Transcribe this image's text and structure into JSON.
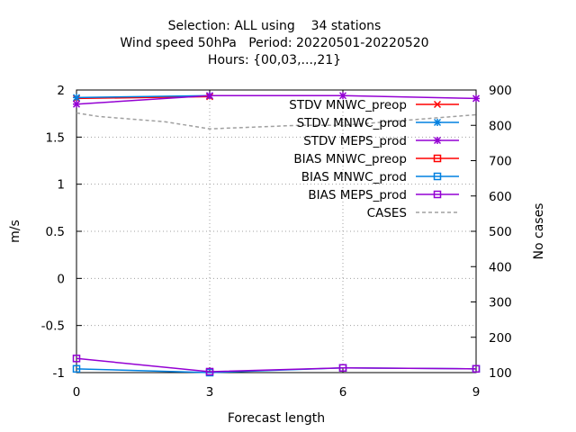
{
  "chart_data": {
    "type": "line",
    "title_lines": [
      "Selection: ALL using    34 stations",
      "Wind speed 50hPa   Period: 20220501-20220520",
      "Hours: {00,03,...,21}"
    ],
    "xlabel": "Forecast length",
    "ylabel": "m/s",
    "y2label": "No cases",
    "x": [
      0,
      3,
      6,
      9
    ],
    "xlim": [
      0,
      9
    ],
    "ylim": [
      -1,
      2
    ],
    "y2lim": [
      100,
      900
    ],
    "xticks": [
      "0",
      "3",
      "6",
      "9"
    ],
    "yticks": [
      "-1",
      "-0.5",
      "0",
      "0.5",
      "1",
      "1.5",
      "2"
    ],
    "y2ticks": [
      "100",
      "200",
      "300",
      "400",
      "500",
      "600",
      "700",
      "800",
      "900"
    ],
    "grid": true,
    "legend_position": "top-right",
    "series": [
      {
        "name": "STDV MNWC_preop",
        "axis": "y1",
        "color": "#ff0000",
        "marker": "cross",
        "values": [
          1.91,
          1.93,
          null,
          null
        ]
      },
      {
        "name": "STDV MNWC_prod",
        "axis": "y1",
        "color": "#0080e0",
        "marker": "star",
        "values": [
          1.92,
          1.94,
          null,
          null
        ]
      },
      {
        "name": "STDV MEPS_prod",
        "axis": "y1",
        "color": "#9400d3",
        "marker": "star",
        "values": [
          1.85,
          1.94,
          1.94,
          1.91
        ]
      },
      {
        "name": "BIAS MNWC_preop",
        "axis": "y1",
        "color": "#ff0000",
        "marker": "square",
        "values": [
          null,
          null,
          null,
          null
        ]
      },
      {
        "name": "BIAS MNWC_prod",
        "axis": "y1",
        "color": "#0080e0",
        "marker": "square",
        "values": [
          -0.96,
          -1.0,
          -0.95,
          -0.96
        ]
      },
      {
        "name": "BIAS MEPS_prod",
        "axis": "y1",
        "color": "#9400d3",
        "marker": "square",
        "values": [
          -0.85,
          -0.99,
          -0.95,
          -0.96
        ]
      },
      {
        "name": "CASES",
        "axis": "y2",
        "color": "#a0a0a0",
        "marker": "none",
        "dashed": true,
        "x": [
          0,
          0.5,
          1,
          2,
          3,
          4,
          5,
          6,
          7,
          8,
          9
        ],
        "values": [
          835,
          825,
          820,
          810,
          790,
          795,
          800,
          800,
          810,
          820,
          830
        ]
      }
    ]
  }
}
